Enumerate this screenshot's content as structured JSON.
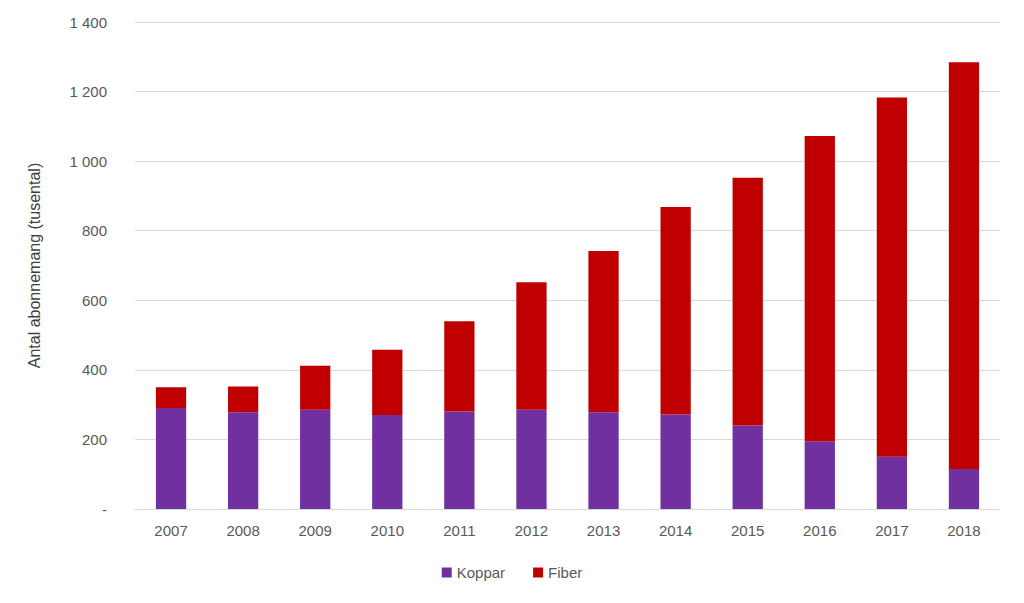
{
  "chart_data": {
    "type": "bar",
    "stacked": true,
    "grid": true,
    "legend": "bottom",
    "y_label": "Antal abonnemang (tusental)",
    "categories": [
      "2007",
      "2008",
      "2009",
      "2010",
      "2011",
      "2012",
      "2013",
      "2014",
      "2015",
      "2016",
      "2017",
      "2018"
    ],
    "series": [
      {
        "name": "Koppar",
        "color": "#7030a0",
        "values": [
          290,
          278,
          285,
          270,
          280,
          285,
          278,
          272,
          240,
          195,
          150,
          115
        ]
      },
      {
        "name": "Fiber",
        "color": "#c00000",
        "values": [
          60,
          74,
          127,
          188,
          260,
          367,
          464,
          596,
          712,
          877,
          1033,
          1169
        ]
      }
    ],
    "ylim": [
      0,
      1400
    ],
    "yticks": [
      {
        "value": 0,
        "label": "-"
      },
      200,
      400,
      600,
      800,
      {
        "value": 1000,
        "label": "1 000"
      },
      {
        "value": 1200,
        "label": "1 200"
      },
      {
        "value": 1400,
        "label": "1 400"
      }
    ]
  }
}
